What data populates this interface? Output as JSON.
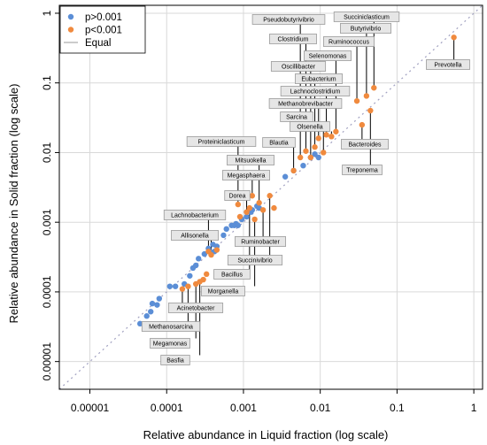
{
  "chart_data": {
    "type": "scatter",
    "xlabel": "Relative abundance in Liquid fraction (log scale)",
    "ylabel": "Relative abundance in Solid fraction (log scale)",
    "xscale": "log",
    "yscale": "log",
    "xlim": [
      4e-06,
      1.3
    ],
    "ylim": [
      4e-06,
      1.3
    ],
    "x_ticks": [
      1e-05,
      0.0001,
      0.001,
      0.01,
      0.1,
      1
    ],
    "x_tick_labels": [
      "0.00001",
      "0.0001",
      "0.001",
      "0.01",
      "0.1",
      "1"
    ],
    "y_ticks": [
      1e-05,
      0.0001,
      0.001,
      0.01,
      0.1,
      1
    ],
    "y_tick_labels": [
      "0.00001",
      "0.0001",
      "0.001",
      "0.01",
      "0.1",
      "1"
    ],
    "grid": true,
    "legend": {
      "placement": "top-left",
      "entries": [
        {
          "label": "p>0.001",
          "kind": "point",
          "color": "#5B8ED6"
        },
        {
          "label": "p<0.001",
          "kind": "point",
          "color": "#F08A3E"
        },
        {
          "label": "Equal",
          "kind": "line",
          "color": "#9a9a9a"
        }
      ]
    },
    "colors": {
      "p_high": "#5B8ED6",
      "p_low": "#F08A3E",
      "equal_line": "#a0a0c0",
      "label_box": "#e6e6e6",
      "label_border": "#9a9a9a",
      "grid": "#d9d9d9"
    },
    "series": [
      {
        "name": "p>0.001",
        "points": [
          {
            "x": 4.5e-05,
            "y": 3.5e-05
          },
          {
            "x": 5.5e-05,
            "y": 4.5e-05
          },
          {
            "x": 6.2e-05,
            "y": 5.2e-05
          },
          {
            "x": 6.5e-05,
            "y": 6.8e-05
          },
          {
            "x": 7.5e-05,
            "y": 6.5e-05
          },
          {
            "x": 8e-05,
            "y": 8e-05
          },
          {
            "x": 0.00011,
            "y": 0.00012
          },
          {
            "x": 0.00013,
            "y": 0.00012
          },
          {
            "x": 0.00017,
            "y": 0.00013
          },
          {
            "x": 0.0002,
            "y": 0.00017
          },
          {
            "x": 0.00022,
            "y": 0.00022
          },
          {
            "x": 0.00024,
            "y": 0.00024
          },
          {
            "x": 0.00026,
            "y": 0.0003
          },
          {
            "x": 0.00031,
            "y": 0.00035
          },
          {
            "x": 0.00035,
            "y": 0.00042
          },
          {
            "x": 0.00038,
            "y": 0.00037
          },
          {
            "x": 0.0004,
            "y": 0.00048
          },
          {
            "x": 0.00042,
            "y": 0.00038
          },
          {
            "x": 0.00045,
            "y": 0.00045
          },
          {
            "x": 0.00055,
            "y": 0.00065
          },
          {
            "x": 0.0006,
            "y": 0.0008
          },
          {
            "x": 0.0007,
            "y": 0.0009
          },
          {
            "x": 0.00076,
            "y": 0.0009
          },
          {
            "x": 0.0008,
            "y": 0.00095
          },
          {
            "x": 0.00085,
            "y": 0.0009
          },
          {
            "x": 0.00095,
            "y": 0.0011
          },
          {
            "x": 0.0011,
            "y": 0.0012
          },
          {
            "x": 0.00125,
            "y": 0.0014
          },
          {
            "x": 0.0013,
            "y": 0.0015
          },
          {
            "x": 0.0015,
            "y": 0.0017
          },
          {
            "x": 0.0016,
            "y": 0.0016
          },
          {
            "x": 0.0035,
            "y": 0.0045
          },
          {
            "x": 0.0045,
            "y": 0.0055
          },
          {
            "x": 0.006,
            "y": 0.0065
          },
          {
            "x": 0.0075,
            "y": 0.0085
          },
          {
            "x": 0.0085,
            "y": 0.0095
          },
          {
            "x": 0.0095,
            "y": 0.0085
          }
        ]
      },
      {
        "name": "p<0.001",
        "points": [
          {
            "x": 0.00016,
            "y": 0.00011,
            "label": "Acinetobacter"
          },
          {
            "x": 0.00019,
            "y": 0.00012,
            "label": "Methanosarcina"
          },
          {
            "x": 0.00024,
            "y": 0.00013,
            "label": "Megamonas"
          },
          {
            "x": 0.00027,
            "y": 0.00014,
            "label": "Basfia"
          },
          {
            "x": 0.0003,
            "y": 0.00015
          },
          {
            "x": 0.00033,
            "y": 0.00018
          },
          {
            "x": 0.00035,
            "y": 0.00038,
            "label": "Lachnobacterium"
          },
          {
            "x": 0.00038,
            "y": 0.00034,
            "label": "Allisonella"
          },
          {
            "x": 0.00045,
            "y": 0.0004
          },
          {
            "x": 0.00085,
            "y": 0.0018,
            "label": "Proteiniclasticum"
          },
          {
            "x": 0.0009,
            "y": 0.0012
          },
          {
            "x": 0.0011,
            "y": 0.0014,
            "label": "Dorea"
          },
          {
            "x": 0.0012,
            "y": 0.0016,
            "label": "Bacillus"
          },
          {
            "x": 0.0013,
            "y": 0.0024,
            "label": "Megasphaera"
          },
          {
            "x": 0.0014,
            "y": 0.0011,
            "label": "Morganella"
          },
          {
            "x": 0.0016,
            "y": 0.0019,
            "label": "Mitsuokella"
          },
          {
            "x": 0.0018,
            "y": 0.0015,
            "label": "Ruminobacter"
          },
          {
            "x": 0.0022,
            "y": 0.0024,
            "label": "Succinivibrio"
          },
          {
            "x": 0.0025,
            "y": 0.0016
          },
          {
            "x": 0.0045,
            "y": 0.0055,
            "label": "Blautia"
          },
          {
            "x": 0.0055,
            "y": 0.0085,
            "label": "Pseudobutyrivibrio"
          },
          {
            "x": 0.0065,
            "y": 0.0105,
            "label": "Clostridium"
          },
          {
            "x": 0.0075,
            "y": 0.0085,
            "label": "Oscillibacter"
          },
          {
            "x": 0.0085,
            "y": 0.012,
            "label": "Eubacterium"
          },
          {
            "x": 0.0095,
            "y": 0.016,
            "label": "Methanobrevibacter"
          },
          {
            "x": 0.011,
            "y": 0.01,
            "label": "Sarcina"
          },
          {
            "x": 0.012,
            "y": 0.018,
            "label": "Lachnoclostridium"
          },
          {
            "x": 0.014,
            "y": 0.017,
            "label": "Olsenella"
          },
          {
            "x": 0.016,
            "y": 0.02,
            "label": "Selenomonas"
          },
          {
            "x": 0.03,
            "y": 0.055,
            "label": "Ruminococcus"
          },
          {
            "x": 0.035,
            "y": 0.025,
            "label": "Bacteroides"
          },
          {
            "x": 0.04,
            "y": 0.065,
            "label": "Butyrivibrio"
          },
          {
            "x": 0.045,
            "y": 0.04,
            "label": "Treponema"
          },
          {
            "x": 0.05,
            "y": 0.085,
            "label": "Succiniclasticum"
          },
          {
            "x": 0.55,
            "y": 0.45,
            "label": "Prevotella"
          }
        ]
      }
    ]
  }
}
